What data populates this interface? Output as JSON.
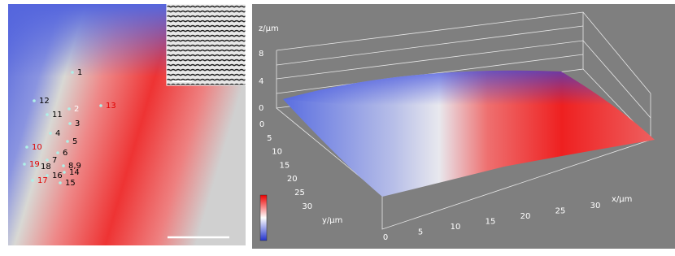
{
  "map": {
    "points": [
      {
        "text": "1",
        "color": "#000000"
      },
      {
        "text": "2",
        "color": "#ffffff"
      },
      {
        "text": "3",
        "color": "#000000"
      },
      {
        "text": "4",
        "color": "#000000"
      },
      {
        "text": "5",
        "color": "#000000"
      },
      {
        "text": "6",
        "color": "#000000"
      },
      {
        "text": "7",
        "color": "#000000"
      },
      {
        "text": "8,9",
        "color": "#000000"
      },
      {
        "text": "10",
        "color": "#e00000"
      },
      {
        "text": "11",
        "color": "#000000"
      },
      {
        "text": "12",
        "color": "#000000"
      },
      {
        "text": "13",
        "color": "#e00000"
      },
      {
        "text": "14",
        "color": "#000000"
      },
      {
        "text": "15",
        "color": "#000000"
      },
      {
        "text": "16",
        "color": "#000000"
      },
      {
        "text": "17",
        "color": "#e00000"
      },
      {
        "text": "18",
        "color": "#000000"
      },
      {
        "text": "19",
        "color": "#e00000"
      }
    ]
  },
  "plot3d": {
    "z_label": "z/μm",
    "x_label": "x/μm",
    "y_label": "y/μm",
    "zticks": [
      0,
      4,
      8
    ],
    "yticks": [
      0,
      5,
      10,
      15,
      20,
      25,
      30
    ],
    "xticks": [
      0,
      5,
      10,
      15,
      20,
      25,
      30
    ]
  }
}
